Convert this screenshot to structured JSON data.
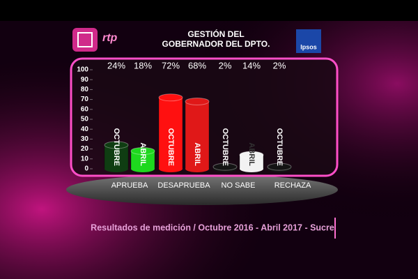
{
  "chart_data": {
    "type": "bar",
    "title": "GESTIÓN DEL GOBERNADOR DEL DPTO.",
    "channel": "rtp",
    "source": "Ipsos",
    "footer": "Resultados de medición / Octubre 2016 - Abril 2017 - Sucre",
    "categories": [
      "APRUEBA",
      "DESAPRUEBA",
      "NO SABE",
      "RECHAZA"
    ],
    "series": [
      {
        "name": "OCTUBRE",
        "colors": [
          "#0f3d12",
          "#ff1010",
          "#141414",
          "#141414"
        ],
        "values": [
          24,
          72,
          2,
          2
        ],
        "value_labels": [
          "24%",
          "72%",
          "2%",
          "2%"
        ]
      },
      {
        "name": "ABRIL",
        "colors": [
          "#1ed81e",
          "#e01818",
          "#f2f2f2",
          null
        ],
        "values": [
          18,
          68,
          14,
          null
        ],
        "value_labels": [
          "18%",
          "68%",
          "14%",
          null
        ]
      }
    ],
    "ylim": [
      0,
      100
    ],
    "yticks": [
      0,
      10,
      20,
      30,
      40,
      50,
      60,
      70,
      80,
      90,
      100
    ]
  }
}
